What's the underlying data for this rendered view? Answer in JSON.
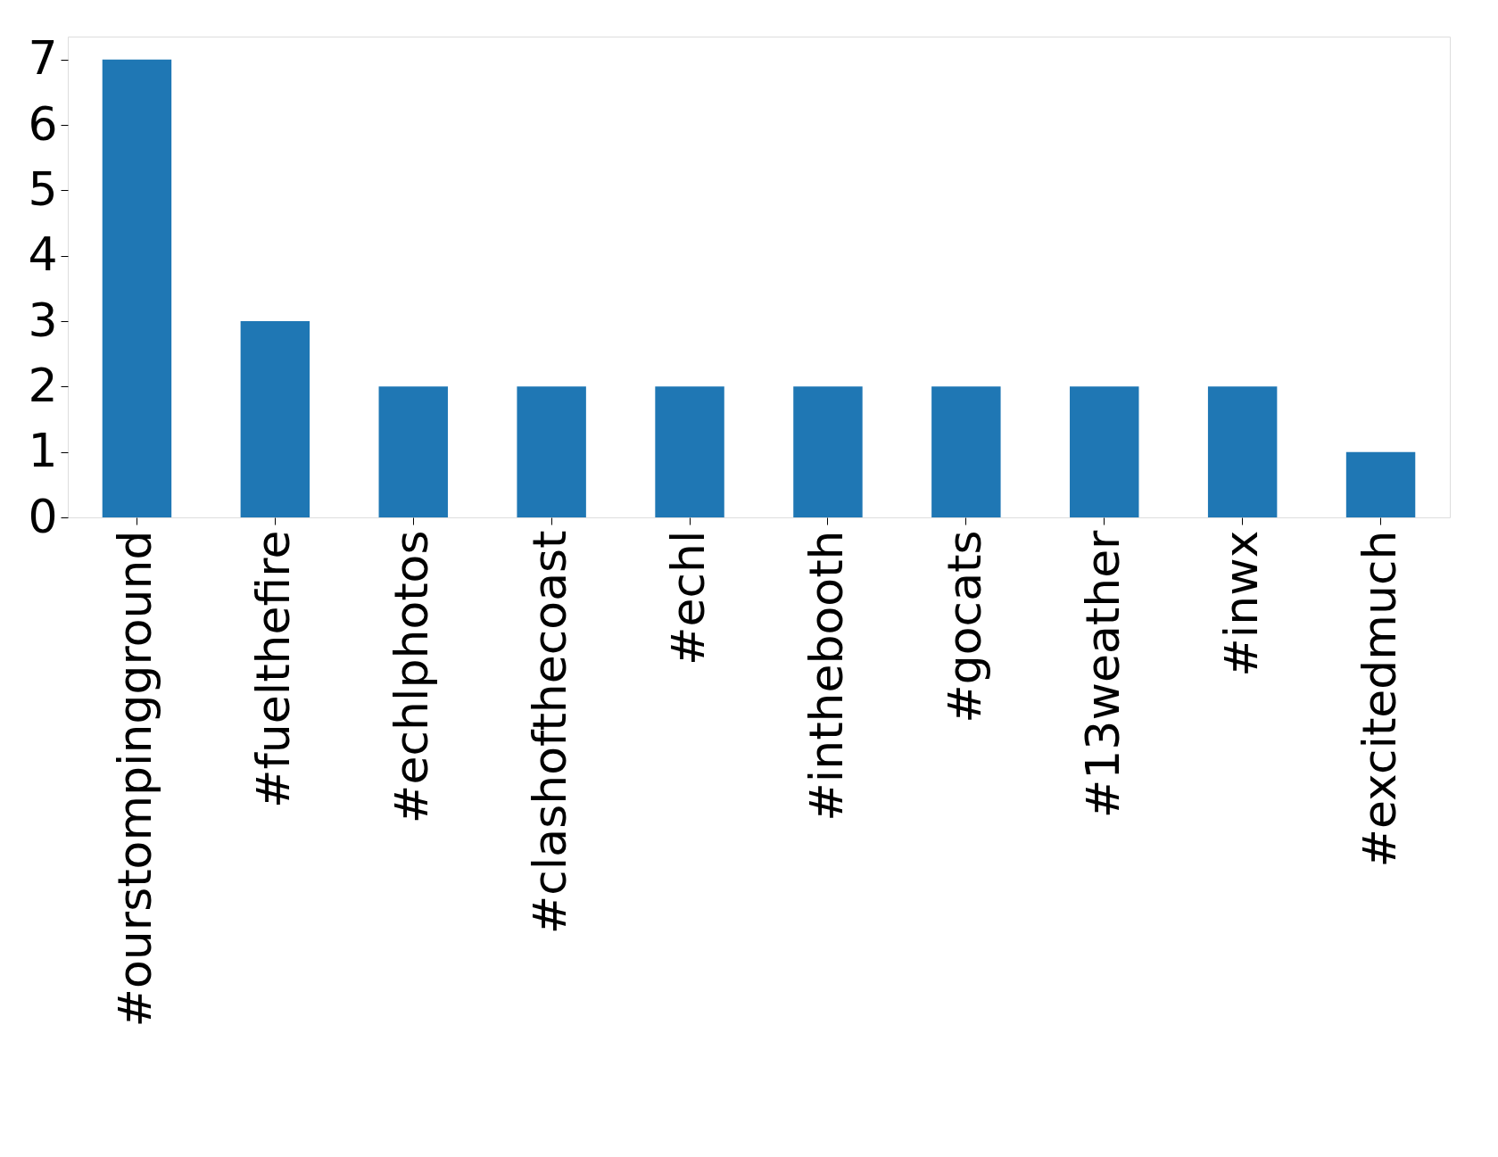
{
  "chart_data": {
    "type": "bar",
    "categories": [
      "#ourstompingground",
      "#fuelthefire",
      "#echlphotos",
      "#clashofthecoast",
      "#echl",
      "#inthebooth",
      "#gocats",
      "#13weather",
      "#inwx",
      "#excitedmuch"
    ],
    "values": [
      7,
      3,
      2,
      2,
      2,
      2,
      2,
      2,
      2,
      1
    ],
    "color": "#1f77b4",
    "ylim": [
      0,
      7.35
    ],
    "yticks": [
      0,
      1,
      2,
      3,
      4,
      5,
      6,
      7
    ],
    "grid": false
  }
}
